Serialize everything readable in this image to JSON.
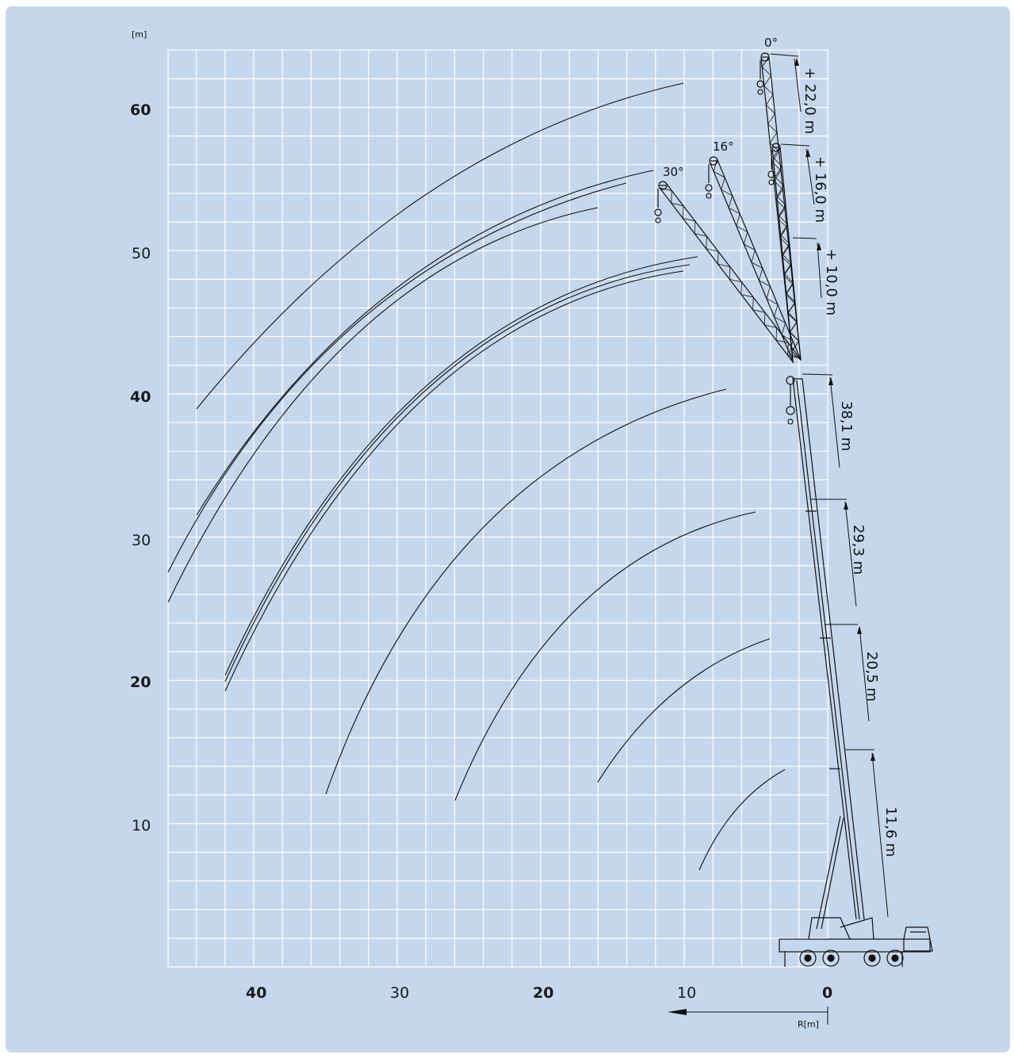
{
  "diagram": {
    "y_unit": "[m]",
    "x_unit": "R[m]",
    "y_ticks": [
      {
        "value": 60,
        "label": "60",
        "bold": true
      },
      {
        "value": 50,
        "label": "50",
        "bold": false
      },
      {
        "value": 40,
        "label": "40",
        "bold": true
      },
      {
        "value": 30,
        "label": "30",
        "bold": false
      },
      {
        "value": 20,
        "label": "20",
        "bold": true
      },
      {
        "value": 10,
        "label": "10",
        "bold": false
      }
    ],
    "x_ticks": [
      {
        "value": 40,
        "label": "40",
        "bold": true
      },
      {
        "value": 30,
        "label": "30",
        "bold": false
      },
      {
        "value": 20,
        "label": "20",
        "bold": true
      },
      {
        "value": 10,
        "label": "10",
        "bold": false
      },
      {
        "value": 0,
        "label": "0",
        "bold": true
      }
    ],
    "boom_lengths": [
      "11,6 m",
      "20,5 m",
      "29,3 m",
      "38,1 m"
    ],
    "jib_extensions": [
      "+ 10,0 m",
      "+ 16,0 m",
      "+ 22,0 m"
    ],
    "jib_angles": [
      "0°",
      "16°",
      "30°"
    ],
    "colors": {
      "background": "#c5d7ec",
      "grid": "#ffffff",
      "line": "#111111"
    }
  }
}
